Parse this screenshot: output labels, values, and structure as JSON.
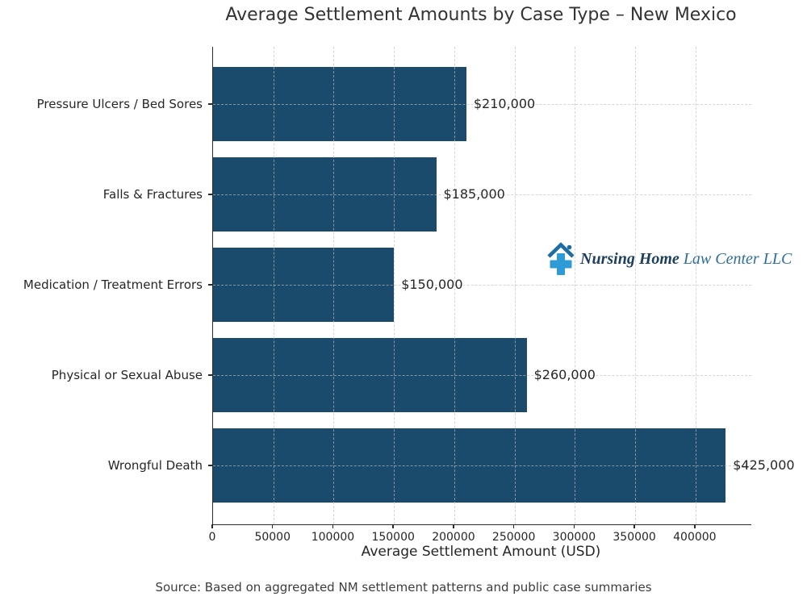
{
  "chart_data": {
    "type": "bar",
    "orientation": "horizontal",
    "title": "Average Settlement Amounts by Case Type – New Mexico",
    "xlabel": "Average Settlement Amount (USD)",
    "categories": [
      "Pressure Ulcers / Bed Sores",
      "Falls & Fractures",
      "Medication / Treatment Errors",
      "Physical or Sexual Abuse",
      "Wrongful Death"
    ],
    "values": [
      210000,
      185000,
      150000,
      260000,
      425000
    ],
    "value_labels": [
      "$210,000",
      "$185,000",
      "$150,000",
      "$260,000",
      "$425,000"
    ],
    "xticks": [
      0,
      50000,
      100000,
      150000,
      200000,
      250000,
      300000,
      350000,
      400000
    ],
    "xtick_labels": [
      "0",
      "50000",
      "100000",
      "150000",
      "200000",
      "250000",
      "300000",
      "350000",
      "400000"
    ],
    "xlim": [
      0,
      446250
    ],
    "grid": "dashed",
    "legend_position": "none",
    "bar_color": "#1a4b6d"
  },
  "footer": {
    "source": "Source: Based on aggregated NM settlement patterns and public case summaries"
  },
  "logo": {
    "icon": "house-cross-icon",
    "name_bold": "Nursing Home",
    "name_regular": "Law Center LLC",
    "cross_color": "#2e9bd6",
    "roof_color": "#1d6ca3"
  },
  "colors": {
    "bar": "#1a4b6d",
    "axis": "#2b2b2b",
    "text": "#262626",
    "title_text": "#333333",
    "grid": "#bebebe",
    "source_text": "#3d3d3d"
  }
}
